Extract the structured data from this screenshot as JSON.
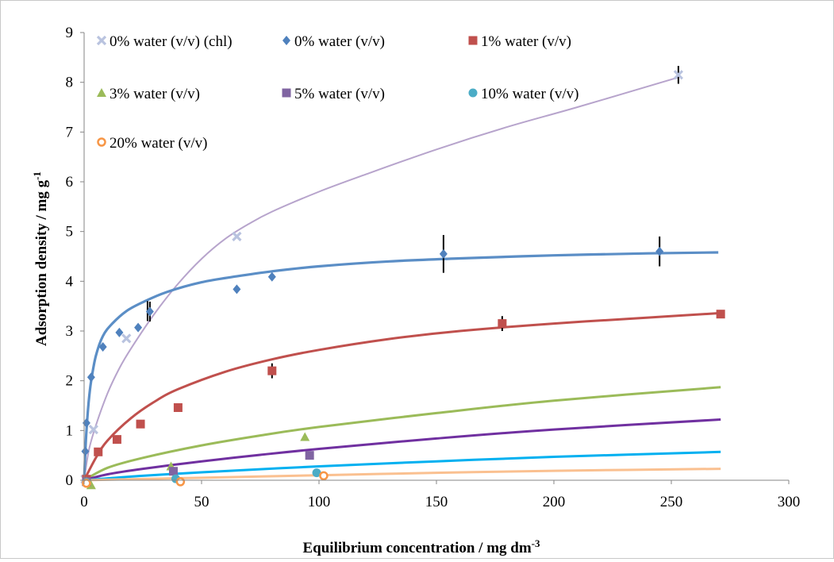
{
  "chart_data": {
    "type": "scatter",
    "xlabel": "Equilibrium concentration / mg dm",
    "xlabel_sup": "-3",
    "ylabel": "Adsorption density / mg g",
    "ylabel_sup": "-1",
    "xlim": [
      0,
      300
    ],
    "ylim": [
      0,
      9
    ],
    "xticks": [
      0,
      50,
      100,
      150,
      200,
      250,
      300
    ],
    "yticks": [
      0,
      1,
      2,
      3,
      4,
      5,
      6,
      7,
      8,
      9
    ],
    "grid": false,
    "legend_position": "top-left",
    "series": [
      {
        "name": "0% water (v/v) (chl)",
        "marker": "x",
        "color": "#b9c3df",
        "fit_color": "#b7a4cc",
        "points": [
          [
            0.5,
            0.02
          ],
          [
            4,
            1.02
          ],
          [
            18,
            2.85
          ],
          [
            65,
            4.9
          ],
          [
            253,
            8.15
          ]
        ],
        "error_bars": [
          [
            27,
            3.4,
            0.2
          ],
          [
            253,
            8.15,
            0.18
          ]
        ],
        "fit": [
          [
            0,
            0
          ],
          [
            2,
            0.6
          ],
          [
            5,
            1.1
          ],
          [
            10,
            1.75
          ],
          [
            15,
            2.25
          ],
          [
            20,
            2.65
          ],
          [
            30,
            3.35
          ],
          [
            40,
            3.95
          ],
          [
            50,
            4.45
          ],
          [
            60,
            4.85
          ],
          [
            70,
            5.15
          ],
          [
            80,
            5.4
          ],
          [
            100,
            5.8
          ],
          [
            120,
            6.15
          ],
          [
            150,
            6.65
          ],
          [
            180,
            7.1
          ],
          [
            210,
            7.5
          ],
          [
            253,
            8.1
          ]
        ]
      },
      {
        "name": "0% water (v/v)",
        "marker": "diamond",
        "color": "#4f81bd",
        "fit_color": "#5b8ec6",
        "points": [
          [
            0.5,
            0.58
          ],
          [
            1,
            1.15
          ],
          [
            3,
            2.07
          ],
          [
            8,
            2.68
          ],
          [
            15,
            2.97
          ],
          [
            23,
            3.07
          ],
          [
            28,
            3.39
          ],
          [
            65,
            3.84
          ],
          [
            80,
            4.09
          ],
          [
            153,
            4.55
          ],
          [
            245,
            4.6
          ]
        ],
        "error_bars": [
          [
            28,
            3.39,
            0.2
          ],
          [
            153,
            4.55,
            0.38
          ],
          [
            245,
            4.6,
            0.3
          ]
        ],
        "fit": [
          [
            0,
            0
          ],
          [
            0.5,
            0.55
          ],
          [
            1,
            1.0
          ],
          [
            2,
            1.6
          ],
          [
            3,
            2.0
          ],
          [
            5,
            2.5
          ],
          [
            8,
            2.9
          ],
          [
            12,
            3.15
          ],
          [
            18,
            3.4
          ],
          [
            25,
            3.58
          ],
          [
            35,
            3.78
          ],
          [
            50,
            3.98
          ],
          [
            65,
            4.1
          ],
          [
            80,
            4.2
          ],
          [
            100,
            4.3
          ],
          [
            130,
            4.4
          ],
          [
            160,
            4.46
          ],
          [
            200,
            4.52
          ],
          [
            240,
            4.56
          ],
          [
            270,
            4.58
          ]
        ]
      },
      {
        "name": "1% water (v/v)",
        "marker": "square",
        "color": "#c0504d",
        "fit_color": "#c0504d",
        "points": [
          [
            1,
            0.02
          ],
          [
            6,
            0.57
          ],
          [
            14,
            0.82
          ],
          [
            24,
            1.13
          ],
          [
            40,
            1.46
          ],
          [
            80,
            2.2
          ],
          [
            178,
            3.15
          ],
          [
            271,
            3.34
          ]
        ],
        "error_bars": [
          [
            80,
            2.2,
            0.15
          ],
          [
            178,
            3.15,
            0.15
          ]
        ],
        "fit": [
          [
            0,
            0
          ],
          [
            5,
            0.45
          ],
          [
            10,
            0.8
          ],
          [
            20,
            1.25
          ],
          [
            30,
            1.58
          ],
          [
            40,
            1.83
          ],
          [
            60,
            2.18
          ],
          [
            80,
            2.43
          ],
          [
            100,
            2.62
          ],
          [
            130,
            2.84
          ],
          [
            160,
            3.0
          ],
          [
            200,
            3.15
          ],
          [
            240,
            3.27
          ],
          [
            271,
            3.36
          ]
        ]
      },
      {
        "name": "3% water (v/v)",
        "marker": "triangle",
        "color": "#9bbb59",
        "fit_color": "#9bbb59",
        "points": [
          [
            1,
            -0.02
          ],
          [
            3,
            -0.1
          ],
          [
            37,
            0.28
          ],
          [
            94,
            0.87
          ]
        ],
        "error_bars": [],
        "fit": [
          [
            0,
            0
          ],
          [
            10,
            0.25
          ],
          [
            25,
            0.45
          ],
          [
            50,
            0.7
          ],
          [
            75,
            0.9
          ],
          [
            100,
            1.07
          ],
          [
            150,
            1.35
          ],
          [
            200,
            1.6
          ],
          [
            271,
            1.87
          ]
        ]
      },
      {
        "name": "5% water (v/v)",
        "marker": "square",
        "color": "#8064a2",
        "fit_color": "#7030a0",
        "points": [
          [
            1,
            -0.03
          ],
          [
            38,
            0.18
          ],
          [
            96,
            0.5
          ]
        ],
        "error_bars": [],
        "fit": [
          [
            0,
            0
          ],
          [
            10,
            0.12
          ],
          [
            25,
            0.23
          ],
          [
            50,
            0.38
          ],
          [
            75,
            0.51
          ],
          [
            100,
            0.63
          ],
          [
            150,
            0.84
          ],
          [
            200,
            1.02
          ],
          [
            271,
            1.22
          ]
        ]
      },
      {
        "name": "10% water (v/v)",
        "marker": "circle",
        "color": "#4bacc6",
        "fit_color": "#00b0f0",
        "points": [
          [
            1,
            -0.04
          ],
          [
            39,
            0.03
          ],
          [
            99,
            0.15
          ]
        ],
        "error_bars": [],
        "fit": [
          [
            0,
            0
          ],
          [
            25,
            0.09
          ],
          [
            50,
            0.16
          ],
          [
            100,
            0.28
          ],
          [
            150,
            0.38
          ],
          [
            200,
            0.47
          ],
          [
            271,
            0.57
          ]
        ]
      },
      {
        "name": "20% water (v/v)",
        "marker": "open-circle",
        "color": "#f79646",
        "fit_color": "#fac090",
        "points": [
          [
            1,
            -0.06
          ],
          [
            41,
            -0.03
          ],
          [
            102,
            0.09
          ]
        ],
        "error_bars": [],
        "fit": [
          [
            0,
            0
          ],
          [
            50,
            0.05
          ],
          [
            100,
            0.1
          ],
          [
            150,
            0.15
          ],
          [
            200,
            0.19
          ],
          [
            271,
            0.23
          ]
        ]
      }
    ]
  }
}
